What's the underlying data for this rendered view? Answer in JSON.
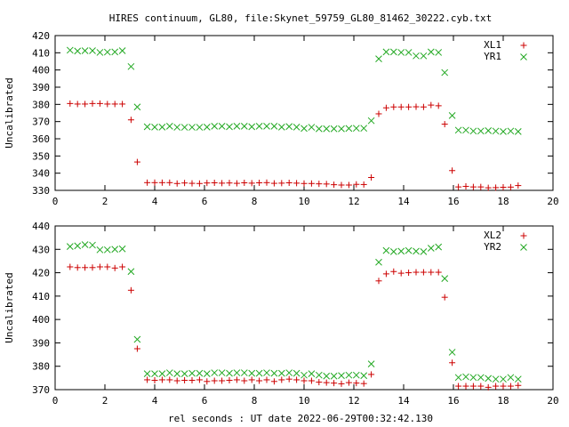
{
  "title": "HIRES continuum, GL80, file:Skynet_59759_GL80_81462_30222.cyb.txt",
  "colors": {
    "red": "#cc0000",
    "green": "#22a822",
    "axis": "#000000"
  },
  "chart_data": [
    {
      "type": "scatter",
      "ylabel": "Uncalibrated",
      "xlabel": "",
      "xlim": [
        0,
        20
      ],
      "ylim": [
        330,
        420
      ],
      "xticks": [
        0,
        2,
        4,
        6,
        8,
        10,
        12,
        14,
        16,
        18,
        20
      ],
      "yticks": [
        330,
        340,
        350,
        360,
        370,
        380,
        390,
        400,
        410,
        420
      ],
      "legend_position": "top-right",
      "x": [
        0.6,
        0.9,
        1.2,
        1.5,
        1.8,
        2.1,
        2.4,
        2.7,
        3.05,
        3.3,
        3.7,
        4.0,
        4.3,
        4.6,
        4.9,
        5.2,
        5.5,
        5.8,
        6.1,
        6.4,
        6.7,
        7.0,
        7.3,
        7.6,
        7.9,
        8.2,
        8.5,
        8.8,
        9.1,
        9.4,
        9.7,
        10.0,
        10.3,
        10.6,
        10.9,
        11.2,
        11.5,
        11.8,
        12.1,
        12.4,
        12.7,
        13.0,
        13.3,
        13.6,
        13.9,
        14.2,
        14.5,
        14.8,
        15.1,
        15.4,
        15.65,
        15.95,
        16.2,
        16.5,
        16.8,
        17.1,
        17.4,
        17.7,
        18.0,
        18.3,
        18.6
      ],
      "series": [
        {
          "name": "XL1",
          "marker": "plus",
          "color": "#cc0000",
          "values": [
            380.5,
            380.2,
            380.2,
            380.5,
            380.5,
            380.2,
            380.2,
            380.2,
            371,
            346.5,
            334.5,
            334.5,
            334.5,
            334.5,
            334,
            334.3,
            334.1,
            334,
            334.3,
            334.4,
            334.2,
            334.3,
            334.1,
            334.4,
            334.2,
            334.4,
            334.5,
            334.1,
            334.2,
            334.4,
            334.2,
            334,
            334,
            333.8,
            333.7,
            333.3,
            333.1,
            333.1,
            333.5,
            333.4,
            337.5,
            374.5,
            378,
            378.5,
            378.5,
            378.5,
            378.6,
            378.5,
            379.6,
            379.2,
            368.5,
            341.5,
            332,
            332.3,
            332,
            332,
            331.5,
            331.6,
            331.8,
            331.9,
            332.8
          ]
        },
        {
          "name": "YR1",
          "marker": "cross",
          "color": "#22a822",
          "values": [
            411.5,
            411,
            411.2,
            411.2,
            410.2,
            410.4,
            410.5,
            411.2,
            402,
            378.5,
            367,
            366.8,
            366.8,
            367.3,
            366.7,
            366.7,
            366.7,
            366.7,
            366.8,
            367.3,
            367.3,
            367,
            367.3,
            367.3,
            367,
            367.3,
            367.3,
            367.3,
            366.8,
            367.1,
            366.8,
            366,
            366.7,
            365.8,
            365.8,
            365.8,
            365.8,
            366,
            366.1,
            366.1,
            370.5,
            406.5,
            410.5,
            410.5,
            410.2,
            410.2,
            408.2,
            408.2,
            410.5,
            410.2,
            398.5,
            373.5,
            365,
            365,
            364.5,
            364.5,
            364.7,
            364.5,
            364.2,
            364.5,
            364.2
          ]
        }
      ]
    },
    {
      "type": "scatter",
      "ylabel": "Uncalibrated",
      "xlabel": "rel seconds : UT date 2022-06-29T00:32:42.130",
      "xlim": [
        0,
        20
      ],
      "ylim": [
        370,
        440
      ],
      "xticks": [
        0,
        2,
        4,
        6,
        8,
        10,
        12,
        14,
        16,
        18,
        20
      ],
      "yticks": [
        370,
        380,
        390,
        400,
        410,
        420,
        430,
        440
      ],
      "legend_position": "top-right",
      "x": [
        0.6,
        0.9,
        1.2,
        1.5,
        1.8,
        2.1,
        2.4,
        2.7,
        3.05,
        3.3,
        3.7,
        4.0,
        4.3,
        4.6,
        4.9,
        5.2,
        5.5,
        5.8,
        6.1,
        6.4,
        6.7,
        7.0,
        7.3,
        7.6,
        7.9,
        8.2,
        8.5,
        8.8,
        9.1,
        9.4,
        9.7,
        10.0,
        10.3,
        10.6,
        10.9,
        11.2,
        11.5,
        11.8,
        12.1,
        12.4,
        12.7,
        13.0,
        13.3,
        13.6,
        13.9,
        14.2,
        14.5,
        14.8,
        15.1,
        15.4,
        15.65,
        15.95,
        16.2,
        16.5,
        16.8,
        17.1,
        17.4,
        17.7,
        18.0,
        18.3,
        18.6
      ],
      "series": [
        {
          "name": "XL2",
          "marker": "plus",
          "color": "#cc0000",
          "values": [
            422.5,
            422.2,
            422.2,
            422.2,
            422.5,
            422.5,
            422,
            422.5,
            412.5,
            387.5,
            374.2,
            374,
            374.2,
            374.2,
            373.8,
            374,
            374,
            374.2,
            373.5,
            373.8,
            373.8,
            374,
            374.2,
            373.8,
            374.2,
            373.8,
            374.2,
            373.5,
            374.2,
            374.5,
            374.2,
            373.8,
            373.8,
            373.2,
            373,
            372.8,
            372.5,
            373,
            372.8,
            372.6,
            376.5,
            416.5,
            419.5,
            420.5,
            419.8,
            420,
            420.2,
            420.2,
            420.2,
            420.2,
            409.5,
            381.5,
            371.5,
            371.5,
            371.5,
            371.5,
            371,
            371.5,
            371.5,
            371.5,
            371.8
          ]
        },
        {
          "name": "YR2",
          "marker": "cross",
          "color": "#22a822",
          "values": [
            431.2,
            431.5,
            432,
            431.8,
            429.8,
            429.8,
            430,
            430.2,
            420.5,
            391.5,
            376.8,
            376.8,
            376.8,
            377.2,
            376.8,
            376.8,
            377,
            377,
            376.8,
            377.2,
            377.2,
            377,
            377.2,
            377.2,
            377,
            377,
            377.2,
            377,
            377,
            377.2,
            377,
            376.2,
            376.8,
            376.2,
            375.8,
            375.8,
            376,
            376.2,
            376.2,
            376,
            381,
            424.5,
            429.5,
            429,
            429.2,
            429.5,
            429.2,
            429,
            430.5,
            431,
            417.5,
            386,
            375.2,
            375.5,
            375.2,
            375.2,
            374.8,
            374.5,
            374.5,
            375.2,
            374.5
          ]
        }
      ]
    }
  ]
}
